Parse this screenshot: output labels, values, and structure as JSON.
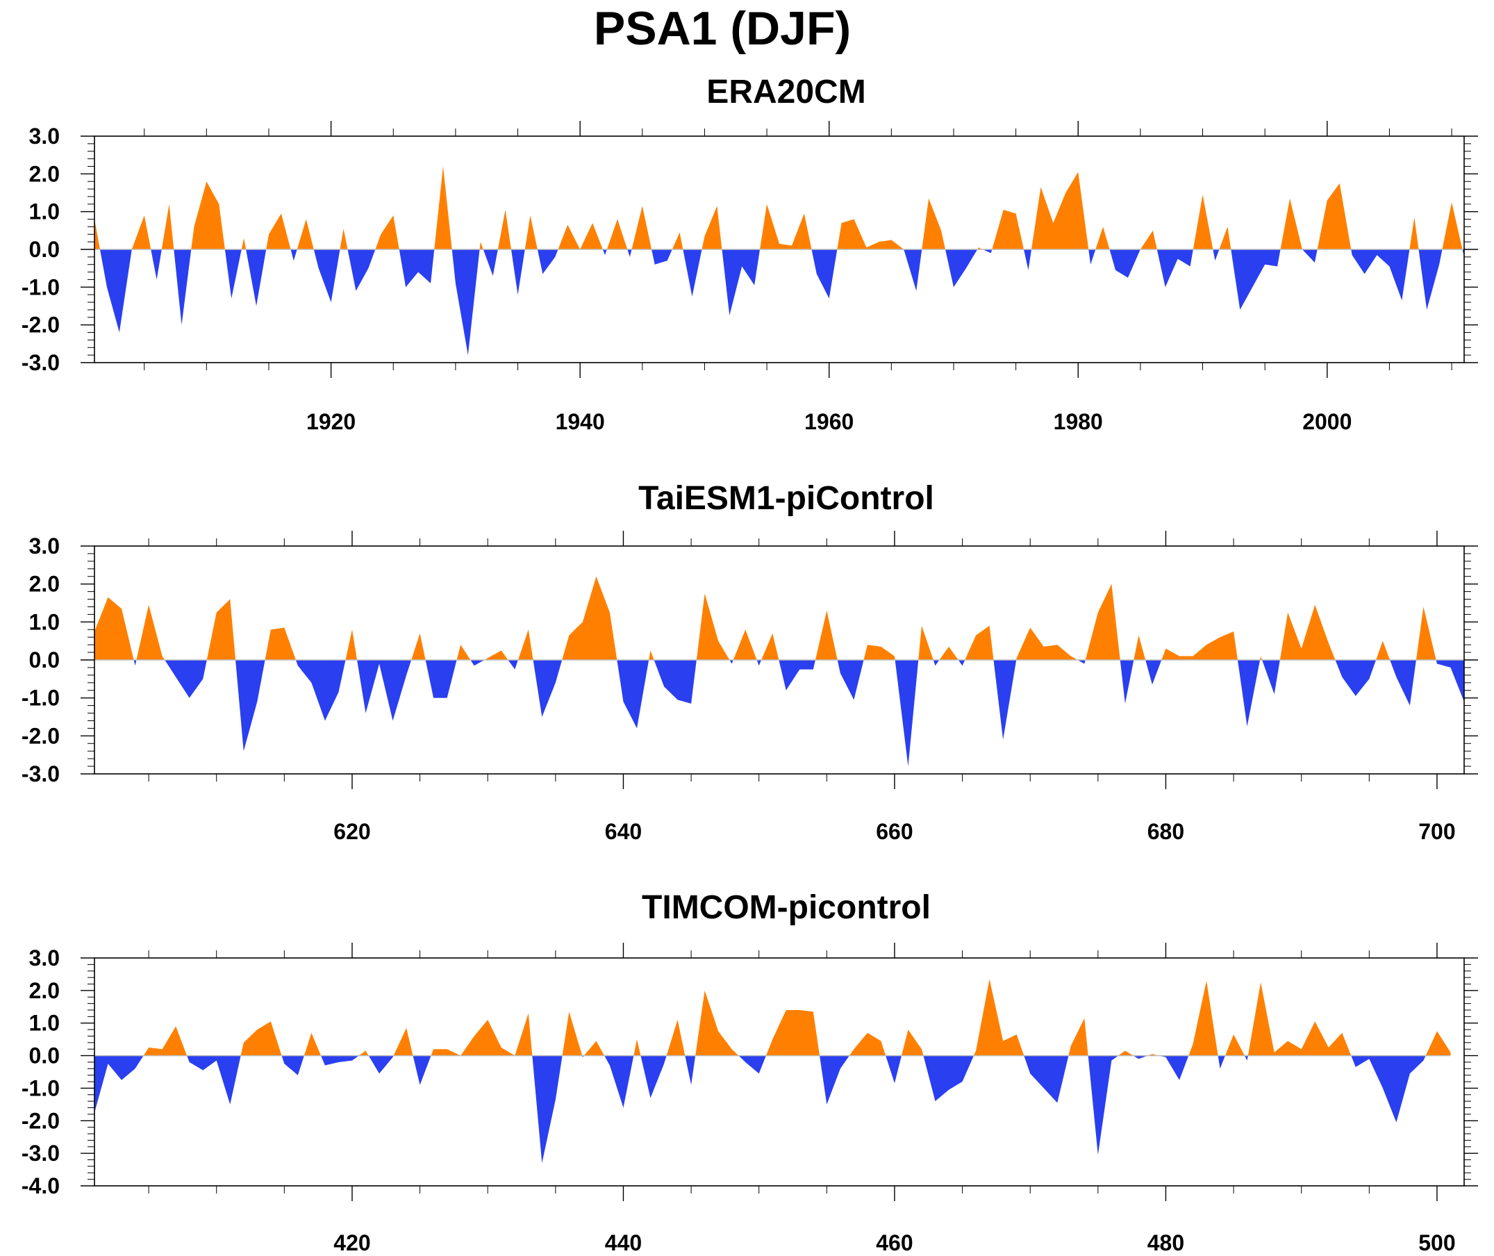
{
  "figure": {
    "title": "PSA1 (DJF)",
    "colors": {
      "positive": "#ff8000",
      "negative": "#2a3ff0",
      "axis": "#000000",
      "zero_line": "#bdbdbd"
    }
  },
  "chart_data": [
    {
      "type": "area",
      "title": "ERA20CM",
      "xlabel": "",
      "ylabel": "",
      "xlim": [
        1901,
        2011
      ],
      "ylim": [
        -3,
        3
      ],
      "x_ticks": [
        1920,
        1940,
        1960,
        1980,
        2000
      ],
      "x_tick_labels": [
        "1920",
        "1940",
        "1960",
        "1980",
        "2000"
      ],
      "y_ticks": [
        -3,
        -2,
        -1,
        0,
        1,
        2,
        3
      ],
      "y_tick_labels": [
        "-3.0",
        "-2.0",
        "-1.0",
        "0.0",
        "1.0",
        "2.0",
        "3.0"
      ],
      "grid": false,
      "x_start": 1901,
      "x_step": 1,
      "values": [
        0.8,
        -1.0,
        -2.2,
        0.0,
        0.9,
        -0.8,
        1.2,
        -2.0,
        0.6,
        1.8,
        1.2,
        -1.3,
        0.3,
        -1.5,
        0.4,
        0.95,
        -0.3,
        0.8,
        -0.5,
        -1.4,
        0.55,
        -1.1,
        -0.5,
        0.4,
        0.9,
        -1.0,
        -0.6,
        -0.9,
        2.2,
        -0.9,
        -2.8,
        0.2,
        -0.7,
        1.05,
        -1.2,
        0.9,
        -0.65,
        -0.2,
        0.65,
        0.0,
        0.7,
        -0.15,
        0.8,
        -0.2,
        1.15,
        -0.4,
        -0.3,
        0.45,
        -1.25,
        0.35,
        1.15,
        -1.75,
        -0.45,
        -0.95,
        1.2,
        0.15,
        0.1,
        0.95,
        -0.65,
        -1.3,
        0.7,
        0.8,
        0.05,
        0.2,
        0.25,
        0.0,
        -1.1,
        1.35,
        0.5,
        -1.0,
        -0.5,
        0.05,
        -0.1,
        1.05,
        0.95,
        -0.55,
        1.65,
        0.7,
        1.5,
        2.05,
        -0.4,
        0.6,
        -0.55,
        -0.75,
        0.0,
        0.5,
        -1.0,
        -0.25,
        -0.45,
        1.45,
        -0.3,
        0.6,
        -1.6,
        -1.0,
        -0.4,
        -0.45,
        1.35,
        0.0,
        -0.35,
        1.3,
        1.75,
        -0.15,
        -0.65,
        -0.15,
        -0.45,
        -1.35,
        0.85,
        -1.6,
        -0.4,
        1.25,
        -0.2
      ]
    },
    {
      "type": "area",
      "title": "TaiESM1-piControl",
      "xlabel": "",
      "ylabel": "",
      "xlim": [
        601,
        702
      ],
      "ylim": [
        -3,
        3
      ],
      "x_ticks": [
        620,
        640,
        660,
        680,
        700
      ],
      "x_tick_labels": [
        "620",
        "640",
        "660",
        "680",
        "700"
      ],
      "y_ticks": [
        -3,
        -2,
        -1,
        0,
        1,
        2,
        3
      ],
      "y_tick_labels": [
        "-3.0",
        "-2.0",
        "-1.0",
        "0.0",
        "1.0",
        "2.0",
        "3.0"
      ],
      "grid": false,
      "x_start": 601,
      "x_step": 1,
      "values": [
        0.75,
        1.65,
        1.35,
        -0.15,
        1.45,
        0.1,
        -0.45,
        -1.0,
        -0.5,
        1.25,
        1.6,
        -2.4,
        -1.1,
        0.8,
        0.85,
        -0.15,
        -0.6,
        -1.6,
        -0.85,
        0.8,
        -1.4,
        -0.1,
        -1.6,
        -0.4,
        0.7,
        -1.0,
        -1.0,
        0.4,
        -0.15,
        0.05,
        0.25,
        -0.25,
        0.8,
        -1.5,
        -0.6,
        0.65,
        1.0,
        2.2,
        1.25,
        -1.1,
        -1.8,
        0.25,
        -0.7,
        -1.05,
        -1.15,
        1.75,
        0.5,
        -0.1,
        0.8,
        -0.15,
        0.7,
        -0.8,
        -0.25,
        -0.25,
        1.3,
        -0.35,
        -1.05,
        0.4,
        0.35,
        0.1,
        -2.8,
        0.9,
        -0.15,
        0.35,
        -0.15,
        0.65,
        0.9,
        -2.1,
        0.05,
        0.85,
        0.35,
        0.4,
        0.1,
        -0.1,
        1.25,
        2.0,
        -1.15,
        0.65,
        -0.65,
        0.3,
        0.1,
        0.1,
        0.4,
        0.6,
        0.75,
        -1.75,
        0.1,
        -0.9,
        1.25,
        0.3,
        1.45,
        0.45,
        -0.45,
        -0.95,
        -0.5,
        0.5,
        -0.45,
        -1.2,
        1.4,
        -0.1,
        -0.2,
        -1.1
      ]
    },
    {
      "type": "area",
      "title": "TIMCOM-picontrol",
      "xlabel": "",
      "ylabel": "",
      "xlim": [
        401,
        502
      ],
      "ylim": [
        -4,
        3
      ],
      "x_ticks": [
        420,
        440,
        460,
        480,
        500
      ],
      "x_tick_labels": [
        "420",
        "440",
        "460",
        "480",
        "500"
      ],
      "y_ticks": [
        -4,
        -3,
        -2,
        -1,
        0,
        1,
        2,
        3
      ],
      "y_tick_labels": [
        "-4.0",
        "-3.0",
        "-2.0",
        "-1.0",
        "0.0",
        "1.0",
        "2.0",
        "3.0"
      ],
      "grid": false,
      "x_start": 401,
      "x_step": 1,
      "values": [
        -1.75,
        -0.25,
        -0.75,
        -0.4,
        0.25,
        0.2,
        0.9,
        -0.2,
        -0.45,
        -0.15,
        -1.5,
        0.4,
        0.8,
        1.05,
        -0.25,
        -0.6,
        0.7,
        -0.3,
        -0.2,
        -0.15,
        0.15,
        -0.55,
        -0.05,
        0.85,
        -0.9,
        0.2,
        0.2,
        0.0,
        0.6,
        1.1,
        0.25,
        0.0,
        1.3,
        -3.3,
        -1.35,
        1.35,
        -0.05,
        0.45,
        -0.3,
        -1.6,
        0.5,
        -1.3,
        -0.25,
        1.1,
        -0.9,
        2.0,
        0.75,
        0.2,
        -0.2,
        -0.55,
        0.5,
        1.4,
        1.4,
        1.35,
        -1.5,
        -0.4,
        0.2,
        0.7,
        0.45,
        -0.85,
        0.8,
        0.2,
        -1.4,
        -1.05,
        -0.8,
        0.15,
        2.35,
        0.45,
        0.65,
        -0.55,
        -1.0,
        -1.45,
        0.3,
        1.15,
        -3.05,
        -0.15,
        0.15,
        -0.1,
        0.05,
        -0.05,
        -0.75,
        0.35,
        2.3,
        -0.4,
        0.65,
        -0.15,
        2.25,
        0.1,
        0.45,
        0.2,
        1.05,
        0.25,
        0.7,
        -0.35,
        -0.1,
        -1.0,
        -2.05,
        -0.55,
        -0.15,
        0.75,
        0.1
      ]
    }
  ]
}
